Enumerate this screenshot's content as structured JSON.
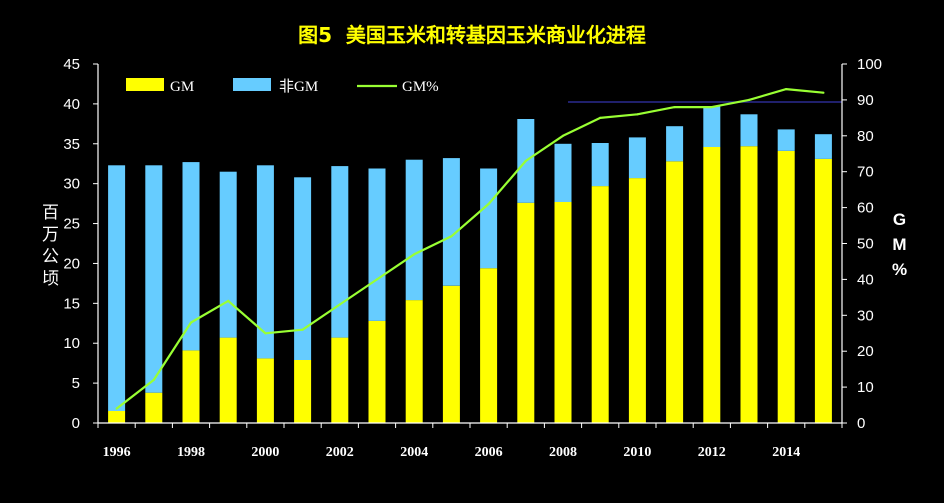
{
  "chart_data": {
    "type": "bar",
    "stacked": true,
    "title": "图5  美国玉米和转基因玉米商业化进程",
    "xlabel": "",
    "ylabel": "百万公顷",
    "y2label": "GM%",
    "x": [
      1996,
      1997,
      1998,
      1999,
      2000,
      2001,
      2002,
      2003,
      2004,
      2005,
      2006,
      2007,
      2008,
      2009,
      2010,
      2011,
      2012,
      2013,
      2014,
      2015
    ],
    "x_tick_labels": [
      "1996",
      "1998",
      "2000",
      "2002",
      "2004",
      "2006",
      "2008",
      "2010",
      "2012",
      "2014"
    ],
    "ylim": [
      0,
      45
    ],
    "y_ticks": [
      0,
      5,
      10,
      15,
      20,
      25,
      30,
      35,
      40,
      45
    ],
    "y2lim": [
      0,
      100
    ],
    "y2_ticks": [
      0,
      10,
      20,
      30,
      40,
      50,
      60,
      70,
      80,
      90,
      100
    ],
    "grid": false,
    "legend_position": "top-left",
    "series": [
      {
        "name": "GM",
        "type": "bar",
        "axis": "left",
        "color": "#FFFF00",
        "values": [
          1.5,
          3.8,
          9.1,
          10.7,
          8.1,
          7.9,
          10.7,
          12.8,
          15.4,
          17.2,
          19.4,
          27.6,
          27.7,
          29.7,
          30.7,
          32.8,
          34.6,
          34.7,
          34.1,
          33.1
        ]
      },
      {
        "name": "非GM",
        "type": "bar",
        "axis": "left",
        "color": "#66CCFF",
        "values": [
          30.8,
          28.5,
          23.6,
          20.8,
          24.2,
          22.9,
          21.5,
          19.1,
          17.6,
          16.0,
          12.5,
          10.5,
          7.3,
          5.4,
          5.1,
          4.4,
          5.1,
          4.0,
          2.7,
          3.1
        ]
      },
      {
        "name": "GM%",
        "type": "line",
        "axis": "right",
        "color": "#99FF33",
        "values": [
          4,
          12,
          28,
          34,
          25,
          26,
          33,
          40,
          47,
          52,
          61,
          73,
          80,
          85,
          86,
          88,
          88,
          90,
          93,
          92
        ]
      }
    ]
  },
  "colors": {
    "background": "#000000",
    "title": "#FFFF00",
    "text": "#FFFFFF",
    "axis": "#FFFFFF",
    "reference_line": "#2B2B8F"
  }
}
